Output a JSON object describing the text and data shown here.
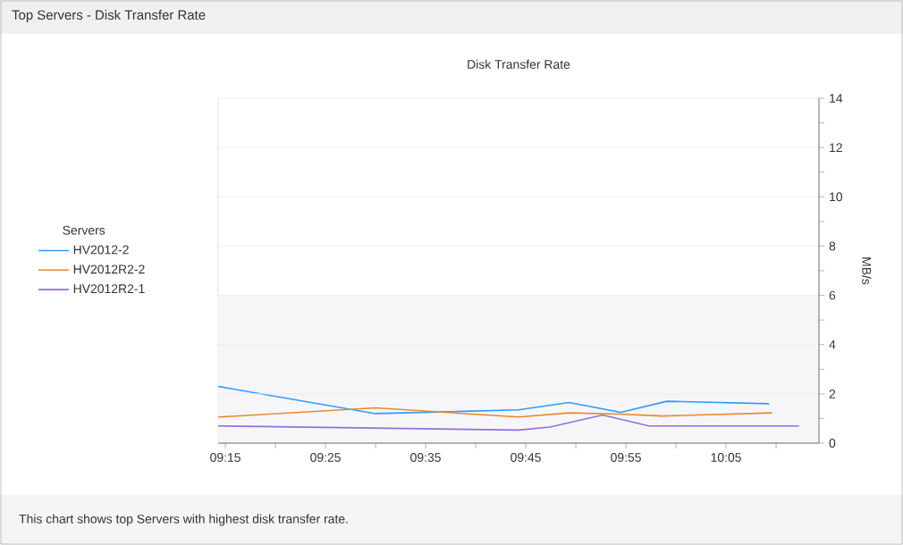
{
  "chart_data": {
    "type": "line",
    "title": "Top Servers - Disk Transfer Rate",
    "subtitle": "Disk Transfer Rate",
    "ylabel": "MB/s",
    "legend_title": "Servers",
    "annotations": [
      "This chart shows top Servers with highest disk transfer rate."
    ],
    "series": [
      {
        "name": "HV2012-2",
        "color": "#3399ff",
        "x": [
          9.238,
          9.5,
          9.738,
          9.822,
          9.908,
          9.985,
          10.155
        ],
        "values": [
          2.3,
          1.2,
          1.35,
          1.65,
          1.25,
          1.7,
          1.6
        ]
      },
      {
        "name": "HV2012R2-2",
        "color": "#e8892a",
        "x": [
          9.238,
          9.5,
          9.738,
          9.822,
          9.908,
          9.977,
          10.16
        ],
        "values": [
          1.06,
          1.43,
          1.06,
          1.23,
          1.18,
          1.1,
          1.23
        ]
      },
      {
        "name": "HV2012R2-1",
        "color": "#9370db",
        "x": [
          9.238,
          9.738,
          9.79,
          9.878,
          9.955,
          10.205
        ],
        "values": [
          0.7,
          0.53,
          0.65,
          1.14,
          0.7,
          0.7
        ]
      }
    ],
    "xlim": [
      9.238,
      10.238
    ],
    "ylim": [
      0,
      14
    ],
    "xticks": [
      {
        "value": 9.25,
        "label": "09:15"
      },
      {
        "value": 9.3333,
        "label": null
      },
      {
        "value": 9.4167,
        "label": "09:25"
      },
      {
        "value": 9.5,
        "label": null
      },
      {
        "value": 9.5833,
        "label": "09:35"
      },
      {
        "value": 9.6667,
        "label": null
      },
      {
        "value": 9.75,
        "label": "09:45"
      },
      {
        "value": 9.8333,
        "label": null
      },
      {
        "value": 9.9167,
        "label": "09:55"
      },
      {
        "value": 10.0,
        "label": null
      },
      {
        "value": 10.0833,
        "label": "10:05"
      },
      {
        "value": 10.1667,
        "label": null
      }
    ],
    "yticks": [
      0,
      {
        "value": 1,
        "label": null
      },
      2,
      {
        "value": 3,
        "label": null
      },
      4,
      {
        "value": 5,
        "label": null
      },
      6,
      {
        "value": 7,
        "label": null
      },
      8,
      {
        "value": 9,
        "label": null
      },
      10,
      {
        "value": 11,
        "label": null
      },
      12,
      {
        "value": 13,
        "label": null
      },
      14
    ],
    "bands": [
      {
        "axis": "y",
        "from": 0,
        "to": 6,
        "color": "#f6f6f9"
      }
    ],
    "grid": "y",
    "legend": "left",
    "marker": "none",
    "line_style": "solid"
  }
}
